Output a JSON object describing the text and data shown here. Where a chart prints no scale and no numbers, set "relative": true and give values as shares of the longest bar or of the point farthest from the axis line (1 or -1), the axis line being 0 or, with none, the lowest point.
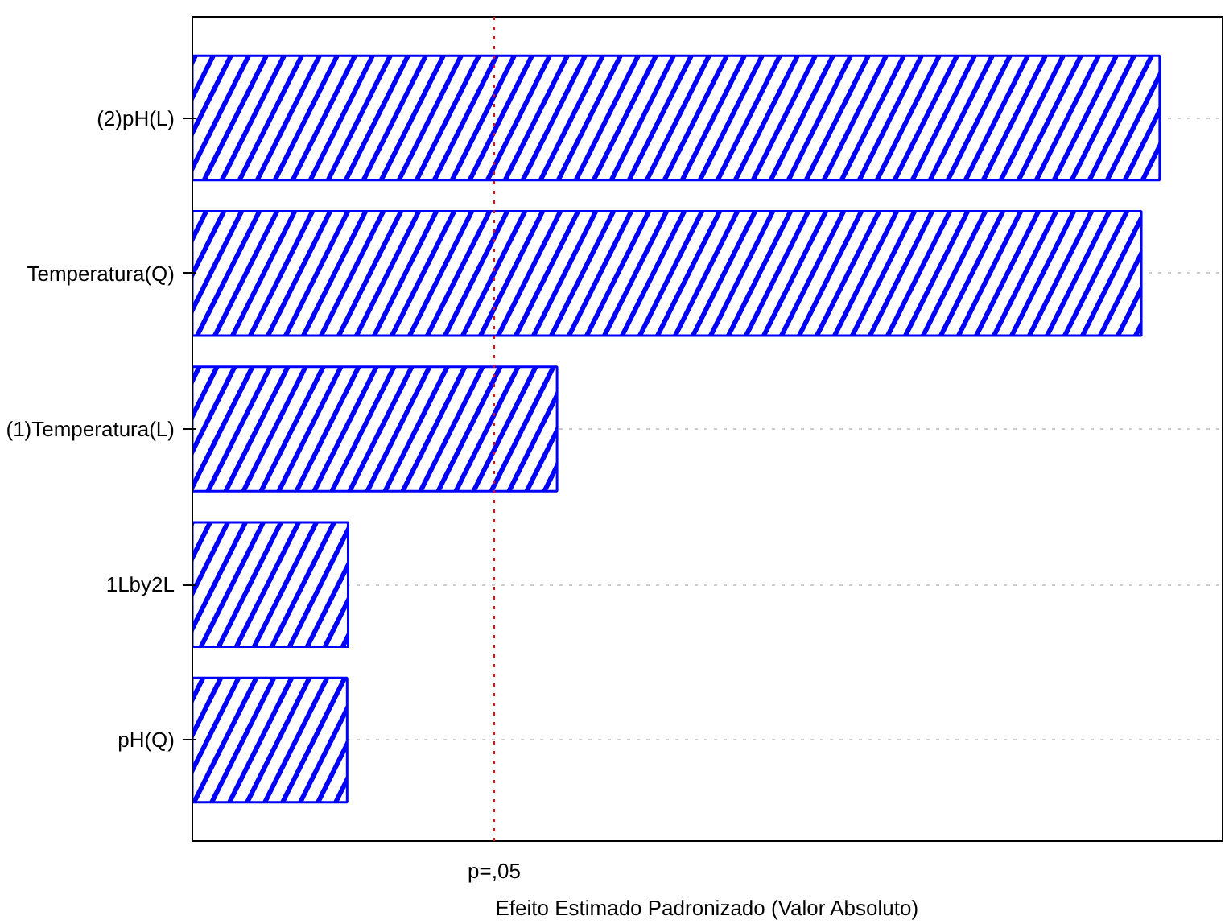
{
  "chart_data": {
    "type": "bar",
    "orientation": "horizontal",
    "relative": true,
    "categories": [
      "(2)pH(L)",
      "Temperatura(Q)",
      "(1)Temperatura(L)",
      "1Lby2L",
      "pH(Q)"
    ],
    "values": [
      1,
      0.981,
      0.377,
      0.161,
      0.16
    ],
    "color": "#0000ff",
    "xlabel": "Efeito Estimado Padronizado (Valor Absoluto)",
    "ref_lines": [
      {
        "axis": "x",
        "value": 0.312,
        "label": "p=,05",
        "color": "#ff0000",
        "line_style": "dotted"
      }
    ],
    "grid": "y"
  }
}
